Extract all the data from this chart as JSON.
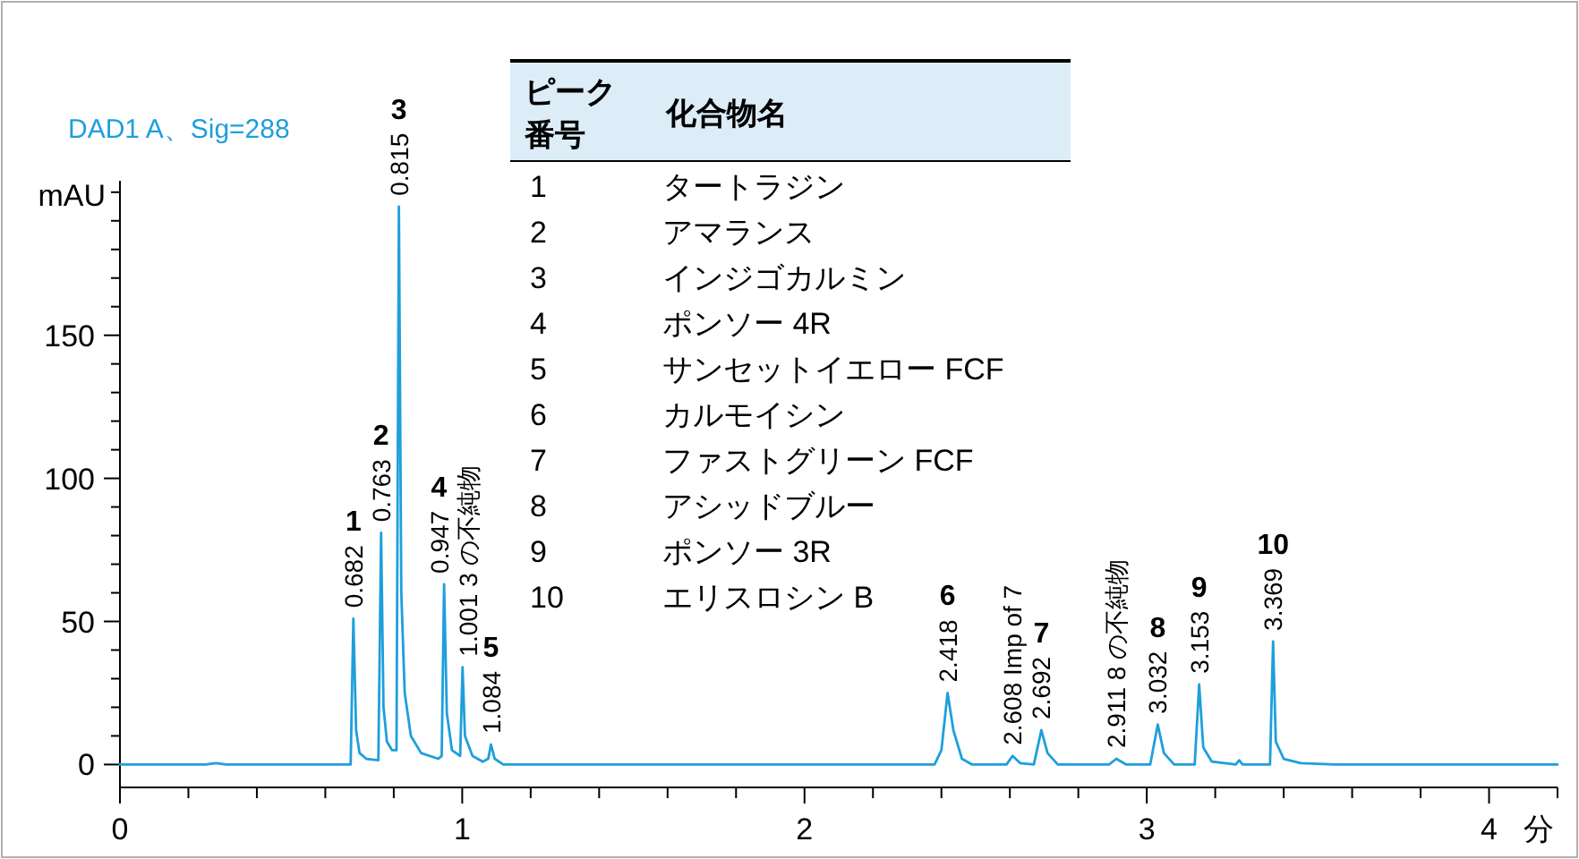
{
  "chart_data": {
    "type": "line",
    "subtitle": "DAD1 A、Sig=288",
    "xlabel": "分",
    "ylabel": "mAU",
    "xlim": [
      0,
      4.2
    ],
    "xticks": [
      0,
      {
        "value": 0.2,
        "label": null
      },
      {
        "value": 0.4,
        "label": null
      },
      {
        "value": 0.6,
        "label": null
      },
      {
        "value": 0.8,
        "label": null
      },
      1,
      {
        "value": 1.2,
        "label": null
      },
      {
        "value": 1.4,
        "label": null
      },
      {
        "value": 1.6,
        "label": null
      },
      {
        "value": 1.8,
        "label": null
      },
      2,
      {
        "value": 2.2,
        "label": null
      },
      {
        "value": 2.4,
        "label": null
      },
      {
        "value": 2.6,
        "label": null
      },
      {
        "value": 2.8,
        "label": null
      },
      3,
      {
        "value": 3.2,
        "label": null
      },
      {
        "value": 3.4,
        "label": null
      },
      {
        "value": 3.6,
        "label": null
      },
      {
        "value": 3.8,
        "label": null
      },
      4,
      {
        "value": 4.2,
        "label": null
      }
    ],
    "ylim": [
      -8,
      204
    ],
    "yticks": [
      0,
      {
        "value": 10,
        "label": null
      },
      {
        "value": 20,
        "label": null
      },
      {
        "value": 30,
        "label": null
      },
      {
        "value": 40,
        "label": null
      },
      50,
      {
        "value": 60,
        "label": null
      },
      {
        "value": 70,
        "label": null
      },
      {
        "value": 80,
        "label": null
      },
      {
        "value": 90,
        "label": null
      },
      100,
      {
        "value": 110,
        "label": null
      },
      {
        "value": 120,
        "label": null
      },
      {
        "value": 130,
        "label": null
      },
      {
        "value": 140,
        "label": null
      },
      150,
      {
        "value": 160,
        "label": null
      },
      {
        "value": 170,
        "label": null
      },
      {
        "value": 180,
        "label": null
      },
      {
        "value": 190,
        "label": null
      },
      {
        "value": 200,
        "label": null
      }
    ],
    "series": [
      {
        "color": "#1e9fdc",
        "x": [
          0,
          0.25,
          0.28,
          0.31,
          0.66,
          0.674,
          0.682,
          0.69,
          0.7,
          0.72,
          0.755,
          0.763,
          0.77,
          0.78,
          0.795,
          0.808,
          0.815,
          0.822,
          0.832,
          0.85,
          0.88,
          0.93,
          0.94,
          0.947,
          0.955,
          0.97,
          0.994,
          1.001,
          1.008,
          1.03,
          1.06,
          1.076,
          1.084,
          1.095,
          1.12,
          2.38,
          2.4,
          2.418,
          2.435,
          2.46,
          2.49,
          2.59,
          2.608,
          2.63,
          2.67,
          2.692,
          2.71,
          2.74,
          2.89,
          2.911,
          2.94,
          3.01,
          3.032,
          3.05,
          3.08,
          3.14,
          3.153,
          3.165,
          3.19,
          3.26,
          3.27,
          3.28,
          3.36,
          3.369,
          3.377,
          3.4,
          3.45,
          3.55,
          4.2
        ],
        "values": [
          0,
          0,
          0.5,
          0,
          0,
          0,
          51,
          12,
          4,
          2,
          1.5,
          81,
          20,
          8,
          5,
          5,
          195,
          60,
          25,
          10,
          4,
          2,
          3,
          63,
          18,
          5,
          3,
          34,
          10,
          3,
          1,
          2,
          7,
          2,
          0,
          0,
          5,
          25,
          12,
          2,
          0,
          0,
          3,
          0.5,
          0,
          12,
          4,
          0,
          0,
          2,
          0,
          0,
          14,
          4,
          0,
          0,
          28,
          6,
          1,
          0,
          1.5,
          0,
          0,
          43,
          8,
          2,
          0.5,
          0,
          0
        ]
      }
    ],
    "annotations": [
      {
        "text": "0.682",
        "x": 0.682,
        "y": 51
      },
      {
        "text": "0.763",
        "x": 0.763,
        "y": 81
      },
      {
        "text": "0.815",
        "x": 0.815,
        "y": 195
      },
      {
        "text": "0.947",
        "x": 0.947,
        "y": 63
      },
      {
        "text": "1.001 3 の不純物",
        "x": 1.001,
        "y": 34
      },
      {
        "text": "1.084",
        "x": 1.084,
        "y": 7
      },
      {
        "text": "2.418",
        "x": 2.418,
        "y": 25
      },
      {
        "text": "2.608 Imp of 7",
        "x": 2.608,
        "y": 3
      },
      {
        "text": "2.692",
        "x": 2.692,
        "y": 12
      },
      {
        "text": "2.911 8 の不純物",
        "x": 2.911,
        "y": 2
      },
      {
        "text": "3.032",
        "x": 3.032,
        "y": 14
      },
      {
        "text": "3.153",
        "x": 3.153,
        "y": 28
      },
      {
        "text": "3.369",
        "x": 3.369,
        "y": 43
      },
      {
        "text": "**1**",
        "x": 0.682,
        "y": 51
      },
      {
        "text": "**2**",
        "x": 0.763,
        "y": 81
      },
      {
        "text": "**3**",
        "x": 0.815,
        "y": 195
      },
      {
        "text": "**4**",
        "x": 0.947,
        "y": 63
      },
      {
        "text": "**5**",
        "x": 1.084,
        "y": 7
      },
      {
        "text": "**6**",
        "x": 2.418,
        "y": 25
      },
      {
        "text": "**7**",
        "x": 2.692,
        "y": 12
      },
      {
        "text": "**8**",
        "x": 3.032,
        "y": 14
      },
      {
        "text": "**9**",
        "x": 3.153,
        "y": 28
      },
      {
        "text": "**10**",
        "x": 3.369,
        "y": 43
      },
      "ピーク",
      "番号",
      "化合物名",
      "1",
      "タートラジン",
      "2",
      "アマランス",
      "3",
      "インジゴカルミン",
      "4",
      "ポンソー 4R",
      "5",
      "サンセットイエロー FCF",
      "6",
      "カルモイシン",
      "7",
      "ファストグリーン FCF",
      "8",
      "アシッドブルー",
      "9",
      "ポンソー 3R",
      "10",
      "エリスロシン B"
    ]
  }
}
